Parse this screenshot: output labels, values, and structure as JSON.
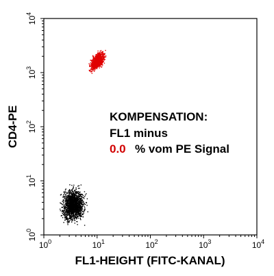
{
  "chart_data": {
    "type": "scatter",
    "title": "",
    "xlabel": "FL1-HEIGHT (FITC-KANAL)",
    "ylabel": "CD4-PE",
    "x_scale": "log",
    "y_scale": "log",
    "xlim": [
      1,
      10000
    ],
    "ylim": [
      1,
      10000
    ],
    "x_ticks": [
      {
        "base": "10",
        "exp": "0"
      },
      {
        "base": "10",
        "exp": "1"
      },
      {
        "base": "10",
        "exp": "2"
      },
      {
        "base": "10",
        "exp": "3"
      },
      {
        "base": "10",
        "exp": "4"
      }
    ],
    "y_ticks": [
      {
        "base": "10",
        "exp": "0"
      },
      {
        "base": "10",
        "exp": "1"
      },
      {
        "base": "10",
        "exp": "2"
      },
      {
        "base": "10",
        "exp": "3"
      },
      {
        "base": "10",
        "exp": "4"
      }
    ],
    "grid": false,
    "series": [
      {
        "color": "#e00000",
        "center": [
          10,
          1600
        ],
        "x_range": [
          6,
          18
        ],
        "y_range": [
          700,
          2700
        ],
        "approx_points": 900
      },
      {
        "color": "#000000",
        "center": [
          3.5,
          3.5
        ],
        "x_range": [
          1.5,
          8
        ],
        "y_range": [
          1,
          12
        ],
        "approx_points": 1600
      }
    ],
    "annotations": {
      "line1": "KOMPENSATION:",
      "line2": "FL1 minus",
      "value": "0.0",
      "line3_rest": "% vom PE Signal"
    }
  }
}
